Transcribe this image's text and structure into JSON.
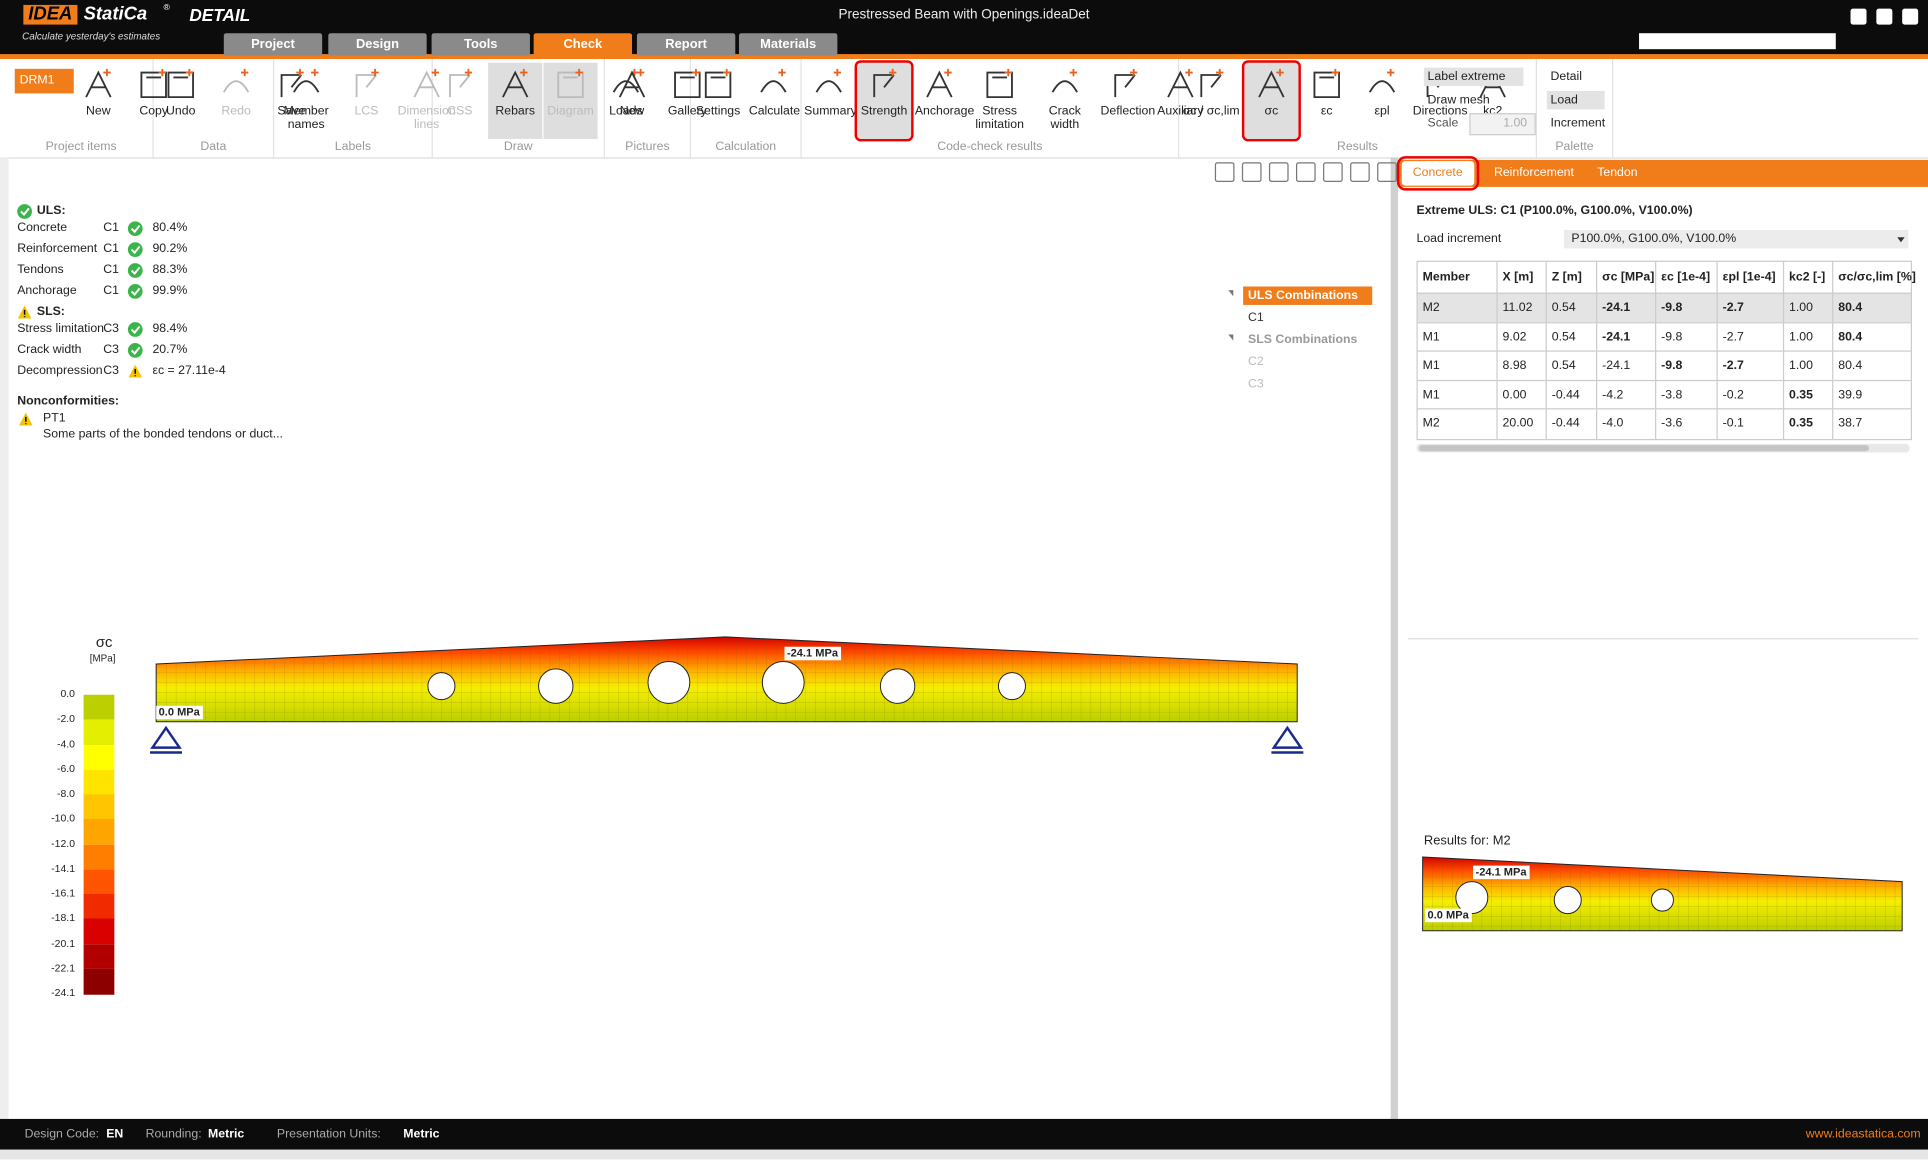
{
  "app": {
    "logo": "IDEA",
    "brand": "StatiCa",
    "reg": "®",
    "product": "DETAIL",
    "tagline": "Calculate yesterday's estimates",
    "title": "Prestressed Beam with Openings.ideaDet"
  },
  "tabs": [
    "Project",
    "Design",
    "Tools",
    "Check",
    "Report",
    "Materials"
  ],
  "active_tab": 3,
  "ribbon": [
    {
      "label": "Project items",
      "dropdown": "DRM1",
      "buttons": [
        {
          "label": "New"
        },
        {
          "label": "Copy"
        }
      ]
    },
    {
      "label": "Data",
      "buttons": [
        {
          "label": "Undo"
        },
        {
          "label": "Redo",
          "disabled": true
        },
        {
          "label": "Save"
        }
      ]
    },
    {
      "label": "Labels",
      "buttons": [
        {
          "label": "Member names"
        },
        {
          "label": "LCS",
          "disabled": true
        },
        {
          "label": "Dimension lines",
          "disabled": true
        }
      ]
    },
    {
      "label": "Draw",
      "buttons": [
        {
          "label": "CSS",
          "disabled": true
        },
        {
          "label": "Rebars",
          "active": true
        },
        {
          "label": "Diagram",
          "disabled": true,
          "active": true
        },
        {
          "label": "Loads"
        }
      ]
    },
    {
      "label": "Pictures",
      "buttons": [
        {
          "label": "New"
        },
        {
          "label": "Gallery"
        }
      ]
    },
    {
      "label": "Calculation",
      "buttons": [
        {
          "label": "Settings"
        },
        {
          "label": "Calculate"
        }
      ]
    },
    {
      "label": "Code-check results",
      "buttons": [
        {
          "label": "Summary"
        },
        {
          "label": "Strength",
          "active": true,
          "highlighted": true
        },
        {
          "label": "Anchorage"
        },
        {
          "label": "Stress limitation"
        },
        {
          "label": "Crack width"
        },
        {
          "label": "Deflection"
        },
        {
          "label": "Auxiliary"
        }
      ]
    },
    {
      "label": "Results",
      "buttons": [
        {
          "label": "σc / σc,lim"
        },
        {
          "label": "σc",
          "active": true,
          "highlighted": true
        },
        {
          "label": "εc"
        },
        {
          "label": "εpl"
        },
        {
          "label": "Directions"
        },
        {
          "label": "kc2"
        }
      ],
      "options": [
        {
          "label": "Label extreme",
          "active": true
        },
        {
          "label": "Draw mesh"
        },
        {
          "label": "Scale",
          "field": "1.00"
        }
      ]
    },
    {
      "label": "Palette",
      "buttons": [],
      "options": [
        {
          "label": "Detail"
        },
        {
          "label": "Load",
          "active": true
        },
        {
          "label": "Increment"
        }
      ]
    }
  ],
  "summary": {
    "uls": {
      "title": "ULS:",
      "status": "ok",
      "rows": [
        {
          "name": "Concrete",
          "comb": "C1",
          "status": "ok",
          "value": "80.4%"
        },
        {
          "name": "Reinforcement",
          "comb": "C1",
          "status": "ok",
          "value": "90.2%"
        },
        {
          "name": "Tendons",
          "comb": "C1",
          "status": "ok",
          "value": "88.3%"
        },
        {
          "name": "Anchorage",
          "comb": "C1",
          "status": "ok",
          "value": "99.9%"
        }
      ]
    },
    "sls": {
      "title": "SLS:",
      "status": "warning",
      "rows": [
        {
          "name": "Stress limitation",
          "comb": "C3",
          "status": "ok",
          "value": "98.4%"
        },
        {
          "name": "Crack width",
          "comb": "C3",
          "status": "ok",
          "value": "20.7%"
        },
        {
          "name": "Decompression",
          "comb": "C3",
          "status": "warning",
          "value": "εc = 27.11e-4"
        }
      ]
    },
    "nonconformities": {
      "title": "Nonconformities:",
      "items": [
        {
          "name": "PT1",
          "text": "Some parts of the bonded tendons or duct..."
        }
      ]
    }
  },
  "tree": [
    {
      "label": "ULS Combinations",
      "group": true,
      "selected": true
    },
    {
      "label": "C1"
    },
    {
      "label": "SLS Combinations",
      "group": true,
      "disabled": true
    },
    {
      "label": "C2",
      "disabled": true
    },
    {
      "label": "C3",
      "disabled": true
    }
  ],
  "legend": {
    "title": "σc",
    "unit": "[MPa]",
    "labels": [
      "0.0",
      "-2.0",
      "-4.0",
      "-6.0",
      "-8.0",
      "-10.0",
      "-12.0",
      "-14.1",
      "-16.1",
      "-18.1",
      "-20.1",
      "-22.1",
      "-24.1"
    ],
    "colors": [
      "#bccf00",
      "#e4ee00",
      "#ffff00",
      "#ffe400",
      "#ffc600",
      "#ffa500",
      "#ff7e00",
      "#ff5400",
      "#f22a00",
      "#d90000",
      "#b20000",
      "#8c0000"
    ]
  },
  "beam": {
    "max_label": "-24.1 MPa",
    "min_label": "0.0 MPa"
  },
  "right": {
    "tabs": [
      "Concrete",
      "Reinforcement",
      "Tendon"
    ],
    "active_tab": 0,
    "extreme": "Extreme ULS: C1 (P100.0%, G100.0%, V100.0%)",
    "load_label": "Load increment",
    "load_value": "P100.0%, G100.0%, V100.0%",
    "table": {
      "headers": [
        "Member",
        "X [m]",
        "Z [m]",
        "σc [MPa]",
        "εc [1e-4]",
        "εpl [1e-4]",
        "kc2 [-]",
        "σc/σc,lim [%]"
      ],
      "rows": [
        [
          "M2",
          "11.02",
          "0.54",
          "-24.1",
          "-9.8",
          "-2.7",
          "1.00",
          "80.4"
        ],
        [
          "M1",
          "9.02",
          "0.54",
          "-24.1",
          "-9.8",
          "-2.7",
          "1.00",
          "80.4"
        ],
        [
          "M1",
          "8.98",
          "0.54",
          "-24.1",
          "-9.8",
          "-2.7",
          "1.00",
          "80.4"
        ],
        [
          "M1",
          "0.00",
          "-0.44",
          "-4.2",
          "-3.8",
          "-0.2",
          "0.35",
          "39.9"
        ],
        [
          "M2",
          "20.00",
          "-0.44",
          "-4.0",
          "-3.6",
          "-0.1",
          "0.35",
          "38.7"
        ]
      ],
      "bold": [
        [
          3,
          4,
          5,
          7
        ],
        [
          3,
          7
        ],
        [
          4,
          5
        ],
        [
          6
        ],
        [
          6
        ]
      ],
      "selected_row": 0
    },
    "results_for": "Results for: M2",
    "mini_max_label": "-24.1 MPa",
    "mini_min_label": "0.0 MPa"
  },
  "status_bar": {
    "items": [
      {
        "label": "Design Code:",
        "value": "EN"
      },
      {
        "label": "Rounding:",
        "value": "Metric"
      },
      {
        "label": "Presentation Units:",
        "value": "Metric"
      }
    ],
    "link": "www.ideastatica.com"
  }
}
